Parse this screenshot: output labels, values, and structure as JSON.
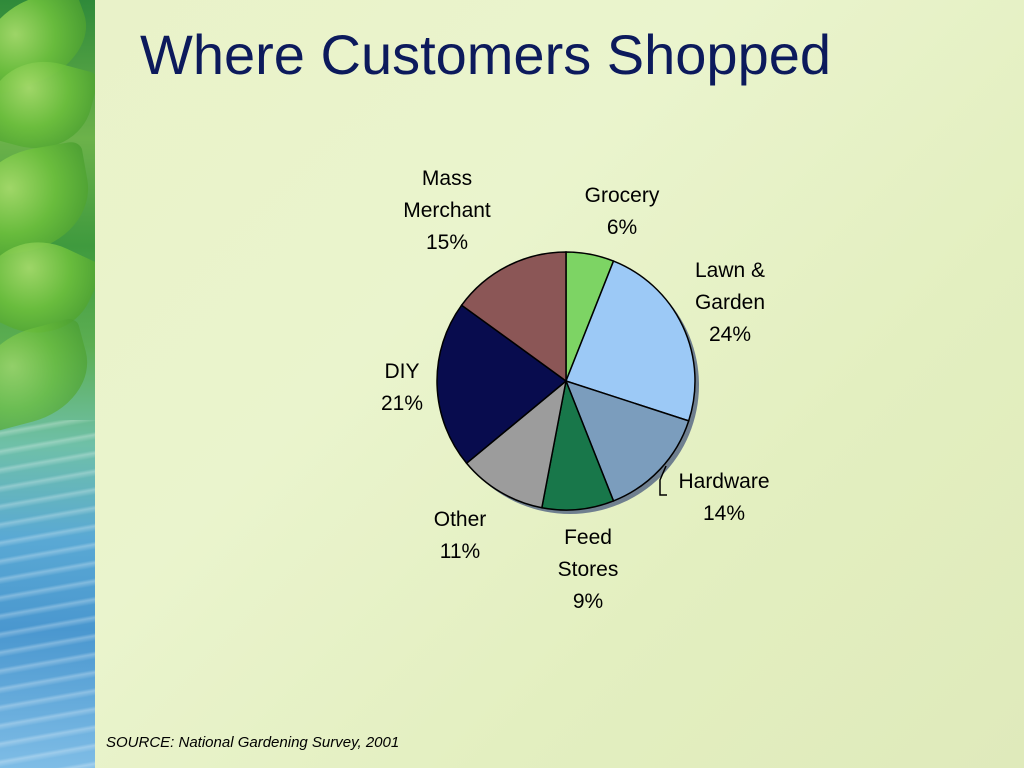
{
  "slide": {
    "title": "Where Customers Shopped",
    "source": "SOURCE: National Gardening Survey, 2001"
  },
  "chart_data": {
    "type": "pie",
    "title": "",
    "slices": [
      {
        "label_lines": [
          "Grocery"
        ],
        "value": 6,
        "value_label": "6%",
        "color": "#7dd464"
      },
      {
        "label_lines": [
          "Lawn &",
          "Garden"
        ],
        "value": 24,
        "value_label": "24%",
        "color": "#9cc9f6"
      },
      {
        "label_lines": [
          "Hardware"
        ],
        "value": 14,
        "value_label": "14%",
        "color": "#7b9dbd"
      },
      {
        "label_lines": [
          "Feed",
          "Stores"
        ],
        "value": 9,
        "value_label": "9%",
        "color": "#18774a"
      },
      {
        "label_lines": [
          "Other"
        ],
        "value": 11,
        "value_label": "11%",
        "color": "#9c9c9c"
      },
      {
        "label_lines": [
          "DIY"
        ],
        "value": 21,
        "value_label": "21%",
        "color": "#080c4e"
      },
      {
        "label_lines": [
          "Mass",
          "Merchant"
        ],
        "value": 15,
        "value_label": "15%",
        "color": "#8b5656"
      }
    ]
  }
}
